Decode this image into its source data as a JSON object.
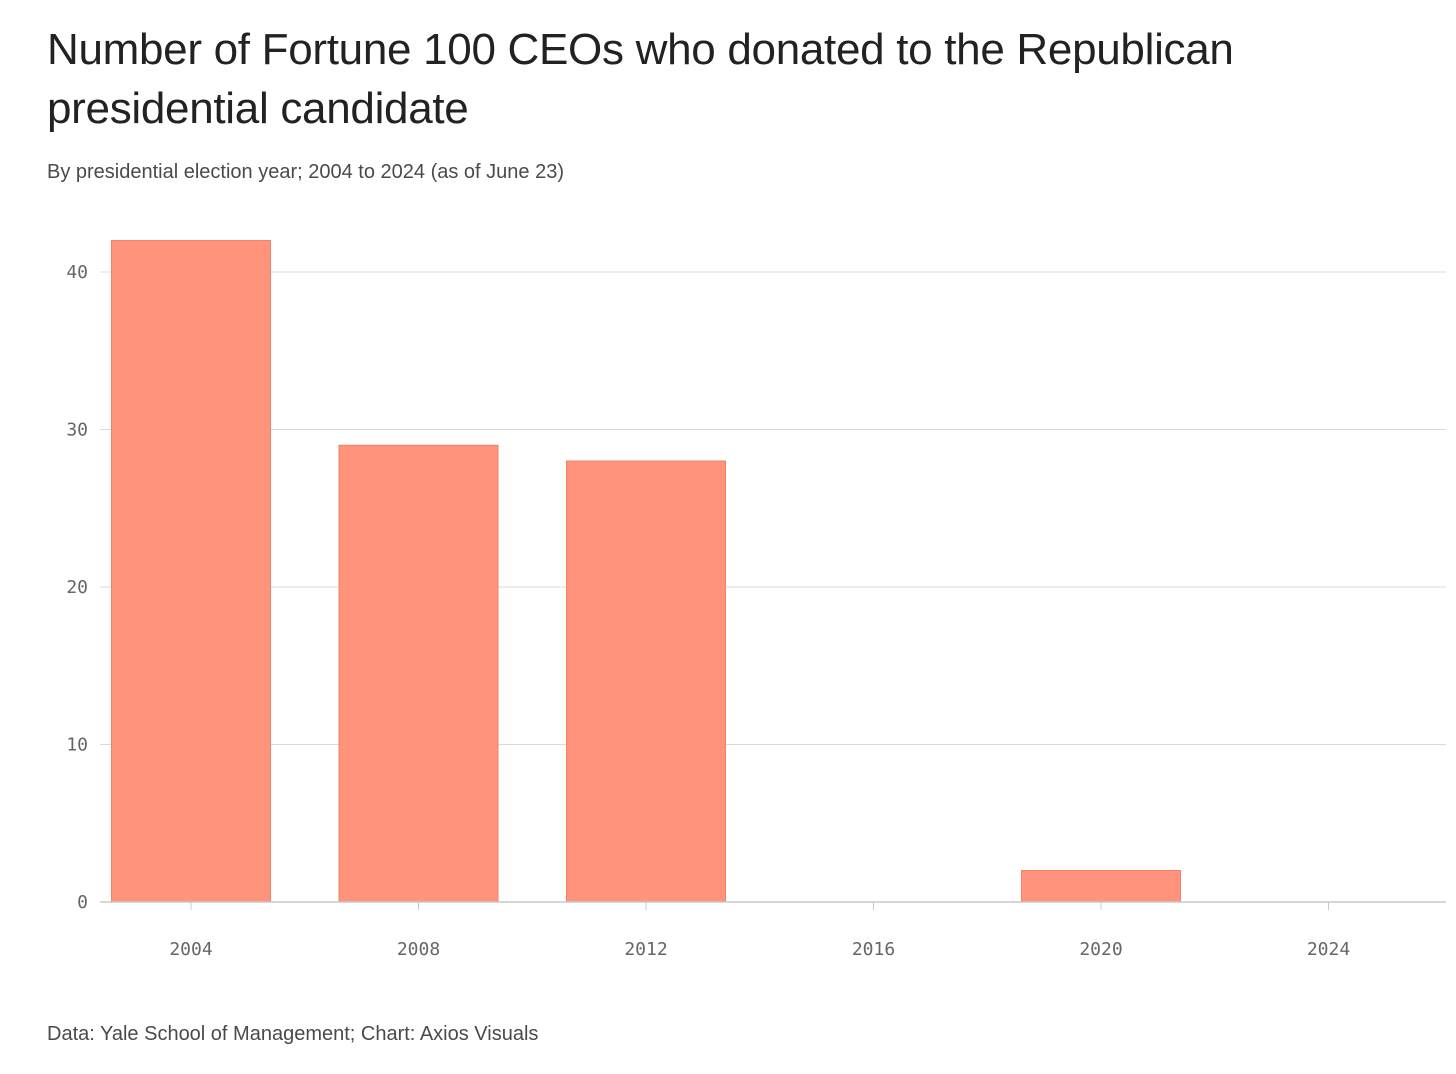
{
  "chart_data": {
    "type": "bar",
    "title": "Number of Fortune 100 CEOs who donated to the Republican presidential candidate",
    "subtitle": "By presidential election year; 2004 to 2024 (as of June 23)",
    "categories": [
      "2004",
      "2008",
      "2012",
      "2016",
      "2020",
      "2024"
    ],
    "values": [
      42,
      29,
      28,
      0,
      2,
      0
    ],
    "yticks": [
      0,
      10,
      20,
      30,
      40
    ],
    "ylim": [
      0,
      42
    ],
    "xlabel": "",
    "ylabel": "",
    "grid": true,
    "bar_color": "#ff937c",
    "bar_edge_color": "#f77f66",
    "grid_color": "#d9d9d9",
    "axis_color": "#c8c8c8",
    "source": "Data: Yale School of Management; Chart: Axios Visuals"
  }
}
